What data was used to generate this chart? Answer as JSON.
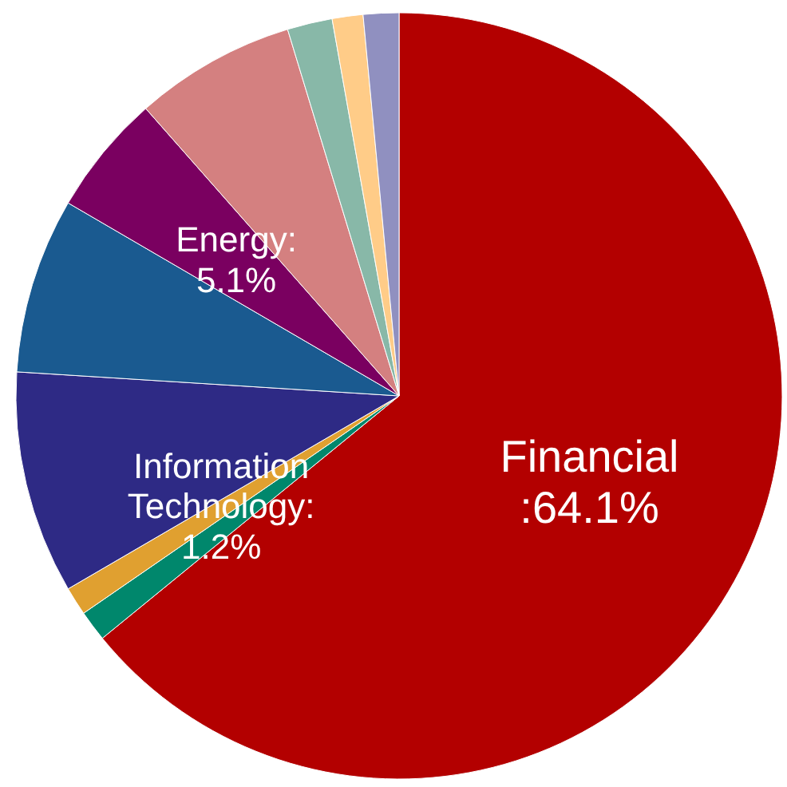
{
  "chart_data": {
    "type": "pie",
    "categories": [
      null,
      null,
      null,
      null,
      null,
      null,
      null,
      null,
      null,
      null
    ],
    "values": [
      64.1,
      1.3,
      1.2,
      9.4,
      7.4,
      5.1,
      6.8,
      1.9,
      1.3,
      1.5
    ],
    "value_labels": [
      "Financial :64.1%",
      null,
      "Information Technology: 1.2%",
      null,
      null,
      "Energy: 5.1%",
      null,
      null,
      null,
      null
    ],
    "colors": [
      "#b30000",
      "#00876c",
      "#e0a030",
      "#2e2a85",
      "#1a5a90",
      "#7a0060",
      "#d48080",
      "#88b8a8",
      "#ffcc88",
      "#9090c0"
    ]
  }
}
